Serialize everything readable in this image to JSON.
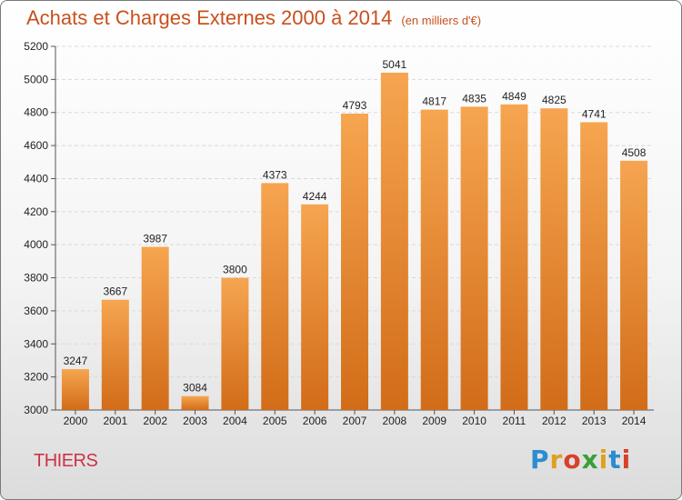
{
  "header": {
    "title": "Achats et Charges Externes 2000 à 2014",
    "subtitle": "(en milliers d'€)"
  },
  "footer": {
    "place": "THIERS",
    "brand_letters": [
      "P",
      "r",
      "o",
      "x",
      "i",
      "t",
      "i"
    ]
  },
  "chart_data": {
    "type": "bar",
    "title": "Achats et Charges Externes 2000 à 2014",
    "subtitle": "(en milliers d'€)",
    "xlabel": "",
    "ylabel": "",
    "categories": [
      "2000",
      "2001",
      "2002",
      "2003",
      "2004",
      "2005",
      "2006",
      "2007",
      "2008",
      "2009",
      "2010",
      "2011",
      "2012",
      "2013",
      "2014"
    ],
    "values": [
      3247,
      3667,
      3987,
      3084,
      3800,
      4373,
      4244,
      4793,
      5041,
      4817,
      4835,
      4849,
      4825,
      4741,
      4508
    ],
    "ylim": [
      3000,
      5200
    ],
    "yticks": [
      3000,
      3200,
      3400,
      3600,
      3800,
      4000,
      4200,
      4400,
      4600,
      4800,
      5000,
      5200
    ],
    "grid": true,
    "colors": {
      "bar_top": "#f6a550",
      "bar_bottom": "#d26c18",
      "title": "#c8501e"
    }
  }
}
